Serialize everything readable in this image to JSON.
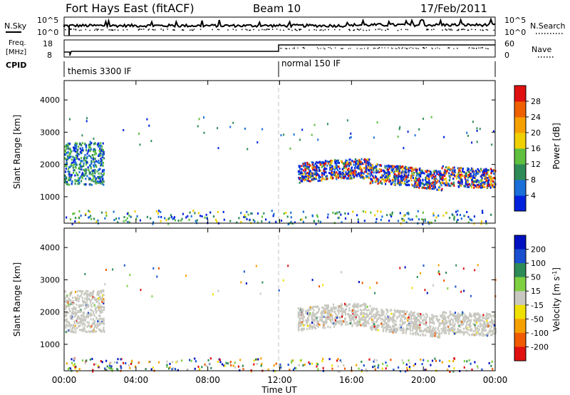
{
  "header": {
    "station": "Fort Hays East (fitACF)",
    "beam": "Beam 10",
    "date": "17/Feb/2011"
  },
  "noise_panel": {
    "left_label": "N.Sky",
    "right_label": "N.Search",
    "yticks_left": [
      "10^5",
      "10^0"
    ],
    "yticks_right": [
      "10^5",
      "10^0"
    ]
  },
  "freq_panel": {
    "left_label_1": "Freq.",
    "left_label_2": "[MHz]",
    "right_label": "Nave",
    "yticks_left": [
      "18",
      "8"
    ],
    "yticks_right": [
      "60",
      "0"
    ]
  },
  "cpid_panel": {
    "label": "CPID",
    "segments": [
      "themis 3300 IF",
      "normal 150 IF"
    ]
  },
  "colors": {
    "power_scale": [
      "#0022dd",
      "#1a6fd8",
      "#2e8b57",
      "#5fbf3f",
      "#f0d000",
      "#f6a000",
      "#ee6000",
      "#e01010"
    ],
    "velocity_scale": [
      "#e01010",
      "#f05a00",
      "#f6a000",
      "#f0e000",
      "#c8c8c0",
      "#7ed040",
      "#2e8b57",
      "#1a4fd0",
      "#0010c0"
    ],
    "ground_scatter": "#c8c8c0"
  },
  "chart_data": [
    {
      "type": "heatmap",
      "title": "Power",
      "xlabel": "",
      "ylabel": "Slant Range [km]",
      "xlim": [
        "00:00",
        "00:00"
      ],
      "xticks": [
        "00:00",
        "04:00",
        "08:00",
        "12:00",
        "16:00",
        "20:00",
        "00:00"
      ],
      "ylim": [
        180,
        4600
      ],
      "yticks": [
        "1000",
        "2000",
        "3000",
        "4000"
      ],
      "colorbar": {
        "label": "Power [dB]",
        "ticks": [
          "4",
          "8",
          "12",
          "16",
          "20",
          "24",
          "28"
        ],
        "range": [
          0,
          30
        ]
      },
      "regions": [
        {
          "t_start": 0.0,
          "t_end": 2.2,
          "r_min": 1400,
          "r_max": 2700,
          "level": "mid"
        },
        {
          "t_start": 13.0,
          "t_end": 24.0,
          "r_min": 1300,
          "r_max": 2100,
          "level": "high"
        },
        {
          "t_start": 0.0,
          "t_end": 24.0,
          "r_min": 180,
          "r_max": 600,
          "level": "low"
        }
      ]
    },
    {
      "type": "heatmap",
      "title": "Velocity",
      "xlabel": "Time UT",
      "ylabel": "Slant Range [km]",
      "xticks": [
        "00:00",
        "04:00",
        "08:00",
        "12:00",
        "16:00",
        "20:00",
        "00:00"
      ],
      "ylim": [
        180,
        4600
      ],
      "yticks": [
        "1000",
        "2000",
        "3000",
        "4000"
      ],
      "colorbar": {
        "label": "Velocity [m s^-1]",
        "ticks": [
          "200",
          "100",
          "50",
          "15",
          "-15",
          "-50",
          "-100",
          "-200"
        ]
      },
      "regions": [
        {
          "t_start": 0.0,
          "t_end": 2.2,
          "r_min": 1400,
          "r_max": 2700,
          "dominant": "ground scatter"
        },
        {
          "t_start": 13.0,
          "t_end": 24.0,
          "r_min": 1300,
          "r_max": 2200,
          "dominant": "ground scatter"
        },
        {
          "t_start": 0.0,
          "t_end": 24.0,
          "r_min": 180,
          "r_max": 600,
          "dominant": "mixed"
        }
      ]
    }
  ],
  "time_axis": {
    "label": "Time UT",
    "ticks": [
      "00:00",
      "04:00",
      "08:00",
      "12:00",
      "16:00",
      "20:00",
      "00:00"
    ]
  }
}
